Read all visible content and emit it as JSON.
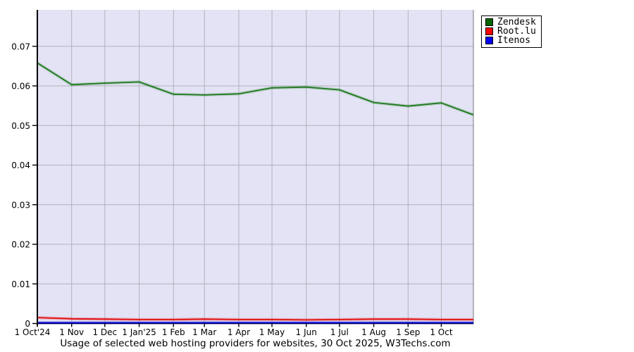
{
  "chart_data": {
    "type": "line",
    "title": "Usage of selected web hosting providers for websites, 30 Oct 2025, W3Techs.com",
    "xlabel": "",
    "ylabel": "",
    "xlim_days": [
      0,
      394
    ],
    "ylim": [
      0,
      0.0792
    ],
    "grid": true,
    "legend_position": "outside-top-right",
    "x_tick_labels": [
      "1 Oct'24",
      "1 Nov",
      "1 Dec",
      "1 Jan'25",
      "1 Feb",
      "1 Mar",
      "1 Apr",
      "1 May",
      "1 Jun",
      "1 Jul",
      "1 Aug",
      "1 Sep",
      "1 Oct"
    ],
    "x_tick_days": [
      0,
      31,
      61,
      92,
      123,
      151,
      182,
      212,
      243,
      273,
      304,
      335,
      365
    ],
    "y_tick_values": [
      0,
      0.01,
      0.02,
      0.03,
      0.04,
      0.05,
      0.06,
      0.07
    ],
    "y_tick_labels": [
      "0",
      "0.01",
      "0.02",
      "0.03",
      "0.04",
      "0.05",
      "0.06",
      "0.07"
    ],
    "x_days": [
      0,
      31,
      61,
      92,
      123,
      151,
      182,
      212,
      243,
      273,
      304,
      335,
      365,
      394
    ],
    "x_point_dates": [
      "1 Oct 2024",
      "1 Nov 2024",
      "1 Dec 2024",
      "1 Jan 2025",
      "1 Feb 2025",
      "1 Mar 2025",
      "1 Apr 2025",
      "1 May 2025",
      "1 Jun 2025",
      "1 Jul 2025",
      "1 Aug 2025",
      "1 Sep 2025",
      "1 Oct 2025",
      "30 Oct 2025"
    ],
    "series": [
      {
        "name": "Zendesk",
        "swatch_color": "#006600",
        "line_color": "#1e7a1e",
        "values": [
          0.0658,
          0.0603,
          0.0607,
          0.061,
          0.0579,
          0.0577,
          0.058,
          0.0595,
          0.0597,
          0.059,
          0.0558,
          0.0549,
          0.0557,
          0.0527
        ]
      },
      {
        "name": "Root.lu",
        "swatch_color": "#ff0000",
        "line_color": "#e30b0b",
        "values": [
          0.0015,
          0.0012,
          0.0011,
          0.001,
          0.001,
          0.0011,
          0.001,
          0.001,
          0.0009,
          0.001,
          0.0011,
          0.0011,
          0.001,
          0.001
        ]
      },
      {
        "name": "Itenos",
        "swatch_color": "#0000ff",
        "line_color": "#0000dd",
        "values": [
          0.0002,
          0.0002,
          0.0002,
          0.0002,
          0.0002,
          0.0002,
          0.0002,
          0.0002,
          0.0002,
          0.0002,
          0.0002,
          0.0002,
          0.0002,
          0.0002
        ]
      }
    ],
    "colors": {
      "plot_bg": "#e3e3f5",
      "grid": "#b0b0ba",
      "axis": "#000000",
      "right_border": "#8a8a94",
      "text": "#000000"
    }
  }
}
